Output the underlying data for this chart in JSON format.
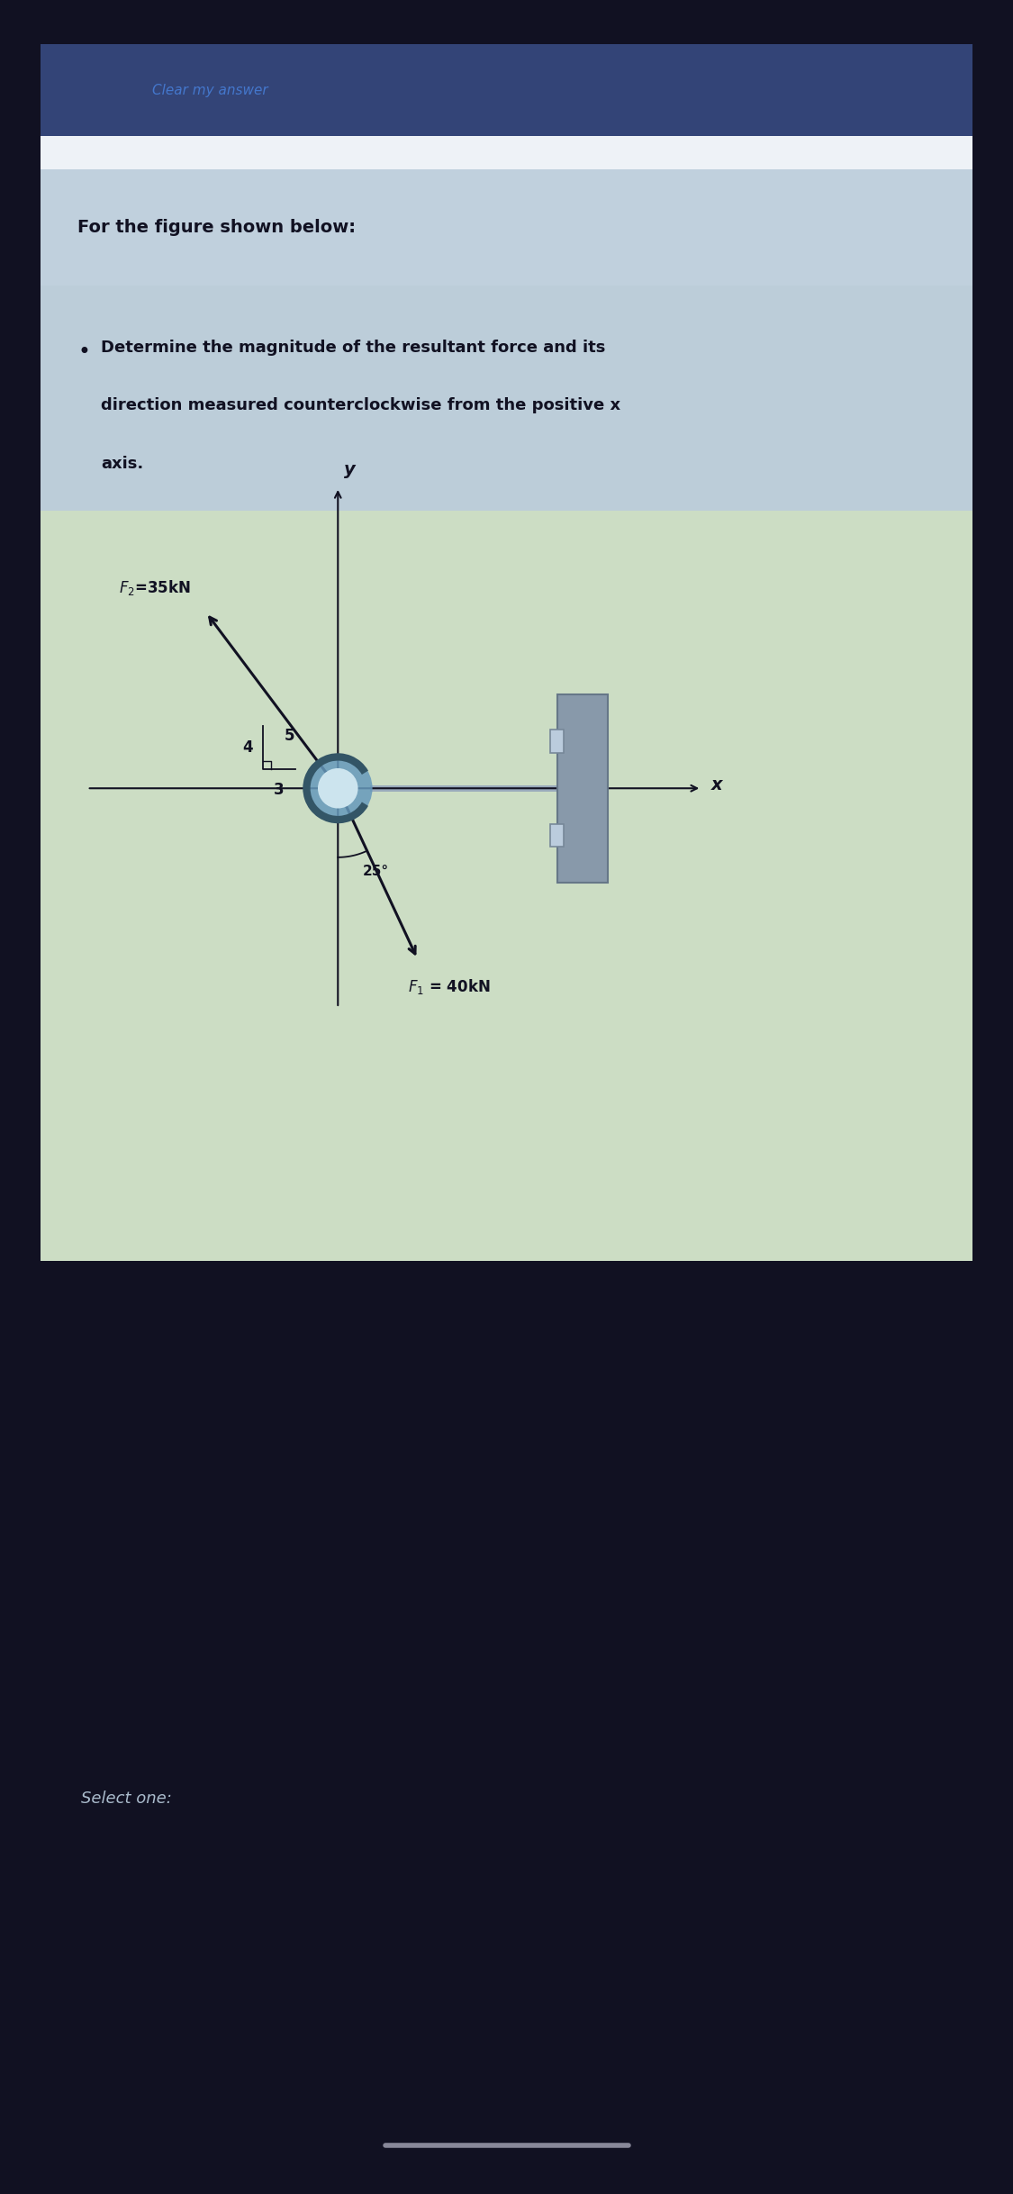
{
  "bg_outer": "#111122",
  "bg_card": "#c8d8e4",
  "bg_topbar": "#334477",
  "bg_figure": "#ccddc4",
  "bg_question": "#b8ccd8",
  "text_dark": "#111122",
  "text_link": "#4477cc",
  "title": "For the figure shown below:",
  "bullet_line1": "Determine the magnitude of the resultant force and its",
  "bullet_line2": "direction measured counterclockwise from the positive x",
  "bullet_line3": "axis.",
  "F2_label": "$F_2$=35kN",
  "F1_label": "$F_1$ = 40kN",
  "r4": "4",
  "r5": "5",
  "r3": "3",
  "angle_label": "25°",
  "x_label": "x",
  "y_label": "y",
  "select_text": "Select one:",
  "link_text": "Clear my answer",
  "arrow_color": "#111122",
  "hook_color": "#6699bb",
  "hook_inner": "#cce4ee",
  "wall_color": "#8899aa",
  "connector_color": "#99aabb"
}
